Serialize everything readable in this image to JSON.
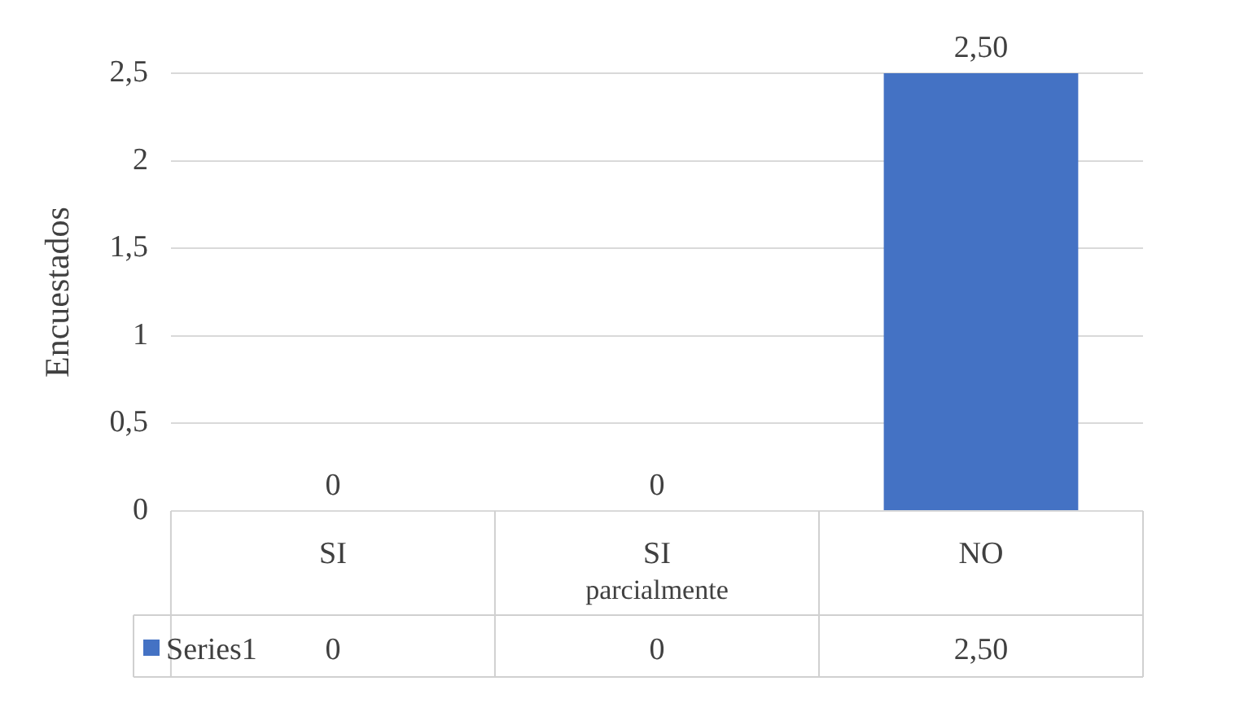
{
  "chart_data": {
    "type": "bar",
    "ylabel": "Encuestados",
    "categories": [
      "SI",
      "SI parcialmente",
      "NO"
    ],
    "series": [
      {
        "name": "Series1",
        "color": "#4472c4",
        "colors": [
          "#70ad47",
          "#c5825f",
          "#4472c4"
        ],
        "values": [
          0,
          0,
          2.5
        ],
        "value_labels": [
          "0",
          "0",
          "2,50"
        ]
      }
    ],
    "ylim": [
      0,
      2.5
    ],
    "yticks": [
      0,
      {
        "value": 0.5,
        "label": "0,5"
      },
      1,
      {
        "value": 1.5,
        "label": "1,5"
      },
      2,
      {
        "value": 2.5,
        "label": "2,5"
      }
    ],
    "grid": "y",
    "legend": "bottom",
    "data_labels": true
  }
}
